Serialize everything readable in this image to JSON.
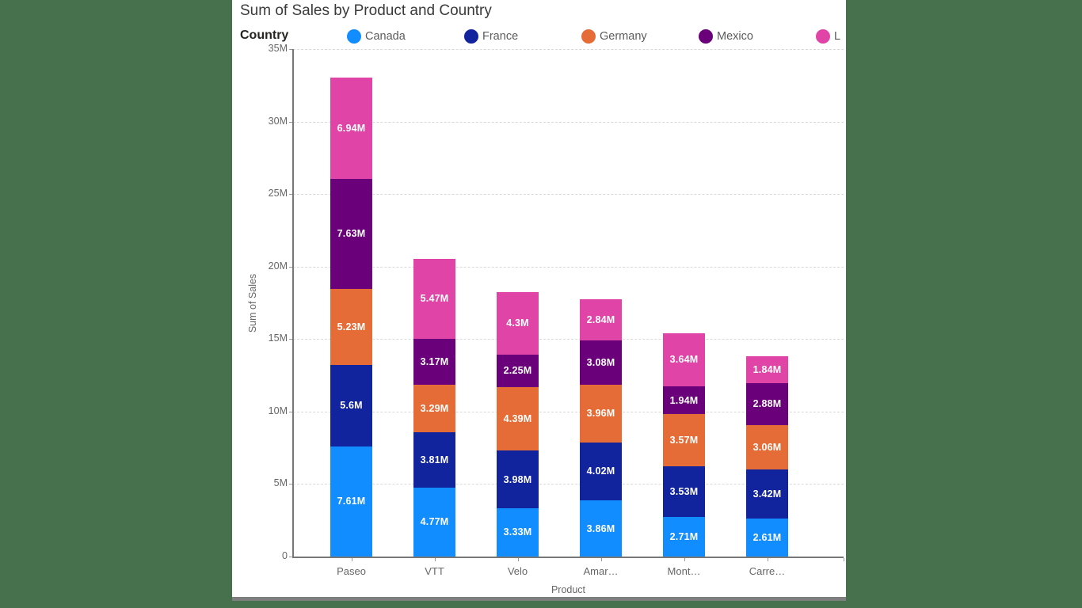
{
  "canvas": {
    "background_color": "#47704D",
    "panel_color": "#FFFFFF",
    "panel_border_color": "#7F7F7F"
  },
  "title": "Sum of Sales by Product and Country",
  "legend": {
    "title": "Country",
    "position": "top",
    "items": [
      {
        "label": "Canada",
        "color": "#118DFF"
      },
      {
        "label": "France",
        "color": "#12239E"
      },
      {
        "label": "Germany",
        "color": "#E66C37"
      },
      {
        "label": "Mexico",
        "color": "#6B007B"
      },
      {
        "label": "L",
        "color": "#E044A7",
        "truncated": true
      }
    ]
  },
  "chart_data": {
    "type": "bar",
    "stacked": true,
    "title": "Sum of Sales by Product and Country",
    "xlabel": "Product",
    "ylabel": "Sum of Sales",
    "values_unit": "millions",
    "ylim": [
      0,
      35000000
    ],
    "ytick_labels": [
      "0",
      "5M",
      "10M",
      "15M",
      "20M",
      "25M",
      "30M",
      "35M"
    ],
    "grid": "horizontal-dashed",
    "legend_position": "top",
    "categories": [
      "Paseo",
      "VTT",
      "Velo",
      "Amar…",
      "Mont…",
      "Carre…"
    ],
    "series": [
      {
        "name": "Canada",
        "color": "#118DFF",
        "values": [
          7.61,
          4.77,
          3.33,
          3.86,
          2.71,
          2.61
        ],
        "labels": [
          "7.61M",
          "4.77M",
          "3.33M",
          "3.86M",
          "2.71M",
          "2.61M"
        ]
      },
      {
        "name": "France",
        "color": "#12239E",
        "values": [
          5.6,
          3.81,
          3.98,
          4.02,
          3.53,
          3.42
        ],
        "labels": [
          "5.6M",
          "3.81M",
          "3.98M",
          "4.02M",
          "3.53M",
          "3.42M"
        ]
      },
      {
        "name": "Germany",
        "color": "#E66C37",
        "values": [
          5.23,
          3.29,
          4.39,
          3.96,
          3.57,
          3.06
        ],
        "labels": [
          "5.23M",
          "3.29M",
          "4.39M",
          "3.96M",
          "3.57M",
          "3.06M"
        ]
      },
      {
        "name": "Mexico",
        "color": "#6B007B",
        "values": [
          7.63,
          3.17,
          2.25,
          3.08,
          1.94,
          2.88
        ],
        "labels": [
          "7.63M",
          "3.17M",
          "2.25M",
          "3.08M",
          "1.94M",
          "2.88M"
        ]
      },
      {
        "name": "L",
        "color": "#E044A7",
        "values": [
          6.94,
          5.47,
          4.3,
          2.84,
          3.64,
          1.84
        ],
        "labels": [
          "6.94M",
          "5.47M",
          "4.3M",
          "2.84M",
          "3.64M",
          "1.84M"
        ]
      }
    ]
  }
}
